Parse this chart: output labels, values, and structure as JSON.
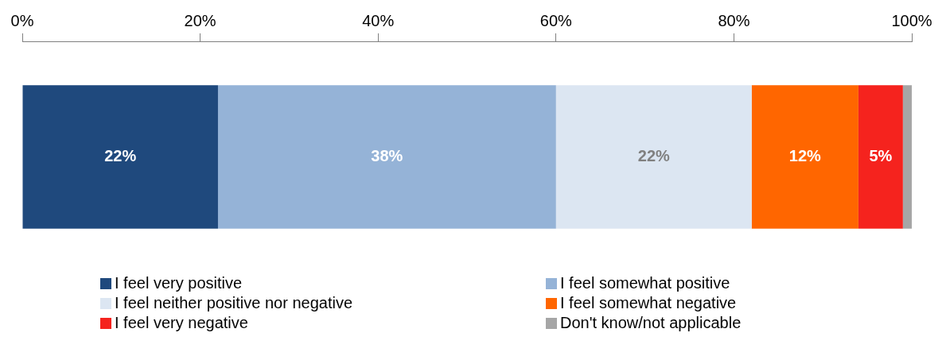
{
  "chart_data": {
    "type": "bar",
    "orientation": "horizontal",
    "stacked": true,
    "categories": [
      null
    ],
    "series": [
      {
        "name": "I feel very positive",
        "color": "#1f497d",
        "values": [
          22
        ],
        "value_labels": [
          "22%"
        ]
      },
      {
        "name": "I feel somewhat positive",
        "color": "#95b3d7",
        "values": [
          38
        ],
        "value_labels": [
          "38%"
        ]
      },
      {
        "name": "I feel neither positive nor negative",
        "color": "#dce6f2",
        "values": [
          22
        ],
        "value_labels": [
          "22%"
        ]
      },
      {
        "name": "I feel somewhat negative",
        "color": "#ff6600",
        "values": [
          12
        ],
        "value_labels": [
          "12%"
        ]
      },
      {
        "name": "I feel very negative",
        "color": "#f5231e",
        "values": [
          5
        ],
        "value_labels": [
          "5%"
        ]
      },
      {
        "name": "Don't know/not applicable",
        "color": "#a6a6a6",
        "values": [
          1
        ],
        "value_labels": [
          null
        ]
      }
    ],
    "xlim": [
      0,
      100
    ],
    "xticks": [
      {
        "value": 0,
        "label": "0%"
      },
      {
        "value": 20,
        "label": "20%"
      },
      {
        "value": 40,
        "label": "40%"
      },
      {
        "value": 60,
        "label": "60%"
      },
      {
        "value": 80,
        "label": "80%"
      },
      {
        "value": 100,
        "label": "100%"
      }
    ],
    "grid": false,
    "legend": "bottom"
  }
}
